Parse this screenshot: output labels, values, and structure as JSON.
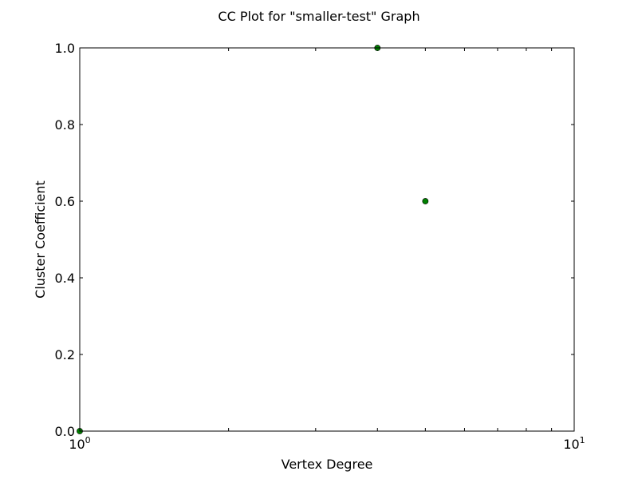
{
  "chart_data": {
    "type": "scatter",
    "title": "CC Plot for \"smaller-test\" Graph",
    "xlabel": "Vertex Degree",
    "ylabel": "Cluster Coefficient",
    "xscale": "log",
    "xlim": [
      1,
      10
    ],
    "ylim": [
      0.0,
      1.0
    ],
    "grid": false,
    "x_ticks": [
      {
        "value": 1,
        "base": "10",
        "exp": "0"
      },
      {
        "value": 10,
        "base": "10",
        "exp": "1"
      }
    ],
    "y_ticks": [
      {
        "value": 0.0,
        "label": "0.0"
      },
      {
        "value": 0.2,
        "label": "0.2"
      },
      {
        "value": 0.4,
        "label": "0.4"
      },
      {
        "value": 0.6,
        "label": "0.6"
      },
      {
        "value": 0.8,
        "label": "0.8"
      },
      {
        "value": 1.0,
        "label": "1.0"
      }
    ],
    "series": [
      {
        "color": "#008000",
        "points": [
          {
            "x": 1,
            "y": 0.0
          },
          {
            "x": 4,
            "y": 1.0
          },
          {
            "x": 5,
            "y": 0.6
          }
        ]
      }
    ]
  }
}
